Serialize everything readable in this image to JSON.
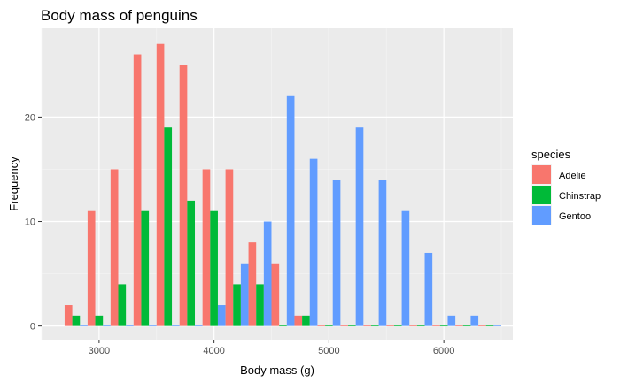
{
  "chart_data": {
    "type": "bar",
    "title": "Body mass of penguins",
    "xlabel": "Body mass (g)",
    "ylabel": "Frequency",
    "xlim": [
      2500,
      6600
    ],
    "ylim": [
      -1.3,
      28.5
    ],
    "x_ticks": [
      3000,
      4000,
      5000,
      6000
    ],
    "x_tick_labels": [
      "3000",
      "4000",
      "5000",
      "6000"
    ],
    "y_ticks": [
      0,
      10,
      20
    ],
    "y_tick_labels": [
      "0",
      "10",
      "20"
    ],
    "bin_centers": [
      2800,
      3000,
      3200,
      3400,
      3600,
      3800,
      4000,
      4200,
      4400,
      4600,
      4800,
      5000,
      5200,
      5400,
      5600,
      5800,
      6000,
      6200,
      6400
    ],
    "bin_width": 200,
    "grid": true,
    "legend_position": "right",
    "legend_title": "species",
    "series": [
      {
        "name": "Adelie",
        "color": "#F8766D",
        "values": [
          2,
          11,
          15,
          26,
          27,
          25,
          15,
          15,
          8,
          6,
          1,
          0,
          0,
          0,
          0,
          0,
          0,
          0,
          0
        ]
      },
      {
        "name": "Chinstrap",
        "color": "#00BA38",
        "values": [
          1,
          1,
          4,
          11,
          19,
          12,
          11,
          4,
          4,
          0,
          1,
          0,
          0,
          0,
          0,
          0,
          0,
          0,
          0
        ]
      },
      {
        "name": "Gentoo",
        "color": "#619CFF",
        "values": [
          0,
          0,
          0,
          0,
          0,
          0,
          2,
          6,
          10,
          22,
          16,
          14,
          19,
          14,
          11,
          7,
          1,
          1,
          0
        ]
      }
    ]
  }
}
